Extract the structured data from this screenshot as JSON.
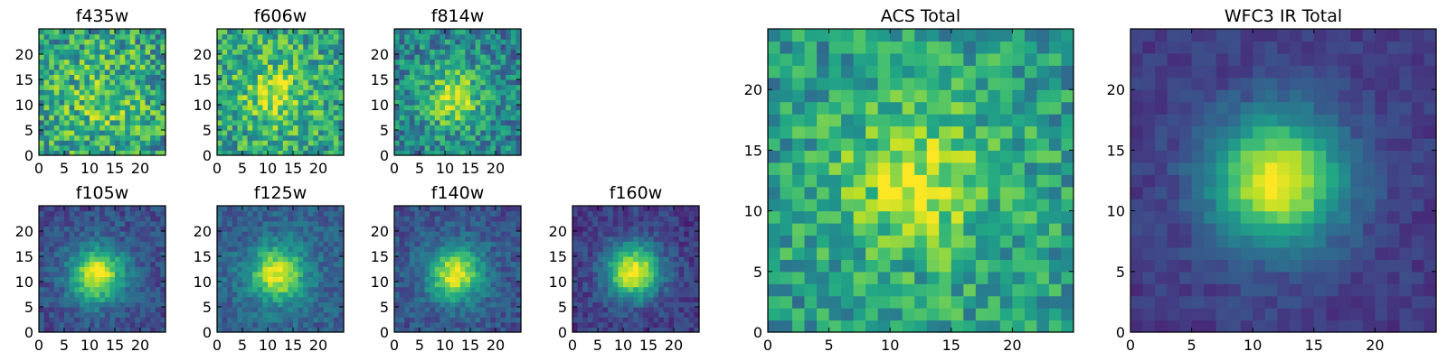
{
  "figure": {
    "panels": [
      {
        "id": "f435w",
        "title": "f435w"
      },
      {
        "id": "f606w",
        "title": "f606w"
      },
      {
        "id": "f814w",
        "title": "f814w"
      },
      {
        "id": "f105w",
        "title": "f105w"
      },
      {
        "id": "f125w",
        "title": "f125w"
      },
      {
        "id": "f140w",
        "title": "f140w"
      },
      {
        "id": "f160w",
        "title": "f160w"
      },
      {
        "id": "acs_total",
        "title": "ACS Total"
      },
      {
        "id": "wfc3_ir_total",
        "title": "WFC3 IR Total"
      }
    ]
  },
  "chart_data": [
    {
      "type": "heatmap",
      "title": "f435w",
      "colormap": "viridis",
      "grid_size": [
        25,
        25
      ],
      "xlim": [
        0,
        25
      ],
      "ylim": [
        0,
        25
      ],
      "xticks": [
        0,
        5,
        10,
        15,
        20
      ],
      "yticks": [
        0,
        5,
        10,
        15,
        20
      ],
      "xtick_labels": [
        "0",
        "5",
        "10",
        "15",
        "20"
      ],
      "ytick_labels": [
        "0",
        "5",
        "10",
        "15",
        "20"
      ],
      "source_center": [
        12,
        11
      ],
      "source_strength": 0.05,
      "noise_level": 0.55,
      "background_level": 0.72
    },
    {
      "type": "heatmap",
      "title": "f606w",
      "colormap": "viridis",
      "grid_size": [
        25,
        25
      ],
      "xlim": [
        0,
        25
      ],
      "ylim": [
        0,
        25
      ],
      "xticks": [
        0,
        5,
        10,
        15,
        20
      ],
      "yticks": [
        0,
        5,
        10,
        15,
        20
      ],
      "xtick_labels": [
        "0",
        "5",
        "10",
        "15",
        "20"
      ],
      "ytick_labels": [
        "0",
        "5",
        "10",
        "15",
        "20"
      ],
      "source_center": [
        11,
        12
      ],
      "source_strength": 0.15,
      "noise_level": 0.5,
      "background_level": 0.72
    },
    {
      "type": "heatmap",
      "title": "f814w",
      "colormap": "viridis",
      "grid_size": [
        25,
        25
      ],
      "xlim": [
        0,
        25
      ],
      "ylim": [
        0,
        25
      ],
      "xticks": [
        0,
        5,
        10,
        15,
        20
      ],
      "yticks": [
        0,
        5,
        10,
        15,
        20
      ],
      "xtick_labels": [
        "0",
        "5",
        "10",
        "15",
        "20"
      ],
      "ytick_labels": [
        "0",
        "5",
        "10",
        "15",
        "20"
      ],
      "source_center": [
        11,
        11
      ],
      "source_strength": 0.4,
      "noise_level": 0.45,
      "background_level": 0.55
    },
    {
      "type": "heatmap",
      "title": "f105w",
      "colormap": "viridis",
      "grid_size": [
        25,
        25
      ],
      "xlim": [
        0,
        25
      ],
      "ylim": [
        0,
        25
      ],
      "xticks": [
        0,
        5,
        10,
        15,
        20
      ],
      "yticks": [
        0,
        5,
        10,
        15,
        20
      ],
      "xtick_labels": [
        "0",
        "5",
        "10",
        "15",
        "20"
      ],
      "ytick_labels": [
        "0",
        "5",
        "10",
        "15",
        "20"
      ],
      "source_center": [
        11,
        11
      ],
      "source_strength": 0.7,
      "noise_level": 0.22,
      "background_level": 0.3
    },
    {
      "type": "heatmap",
      "title": "f125w",
      "colormap": "viridis",
      "grid_size": [
        25,
        25
      ],
      "xlim": [
        0,
        25
      ],
      "ylim": [
        0,
        25
      ],
      "xticks": [
        0,
        5,
        10,
        15,
        20
      ],
      "yticks": [
        0,
        5,
        10,
        15,
        20
      ],
      "xtick_labels": [
        "0",
        "5",
        "10",
        "15",
        "20"
      ],
      "ytick_labels": [
        "0",
        "5",
        "10",
        "15",
        "20"
      ],
      "source_center": [
        11.5,
        11
      ],
      "source_strength": 0.6,
      "noise_level": 0.22,
      "background_level": 0.38
    },
    {
      "type": "heatmap",
      "title": "f140w",
      "colormap": "viridis",
      "grid_size": [
        25,
        25
      ],
      "xlim": [
        0,
        25
      ],
      "ylim": [
        0,
        25
      ],
      "xticks": [
        0,
        5,
        10,
        15,
        20
      ],
      "yticks": [
        0,
        5,
        10,
        15,
        20
      ],
      "xtick_labels": [
        "0",
        "5",
        "10",
        "15",
        "20"
      ],
      "ytick_labels": [
        "0",
        "5",
        "10",
        "15",
        "20"
      ],
      "source_center": [
        11.5,
        11
      ],
      "source_strength": 0.65,
      "noise_level": 0.22,
      "background_level": 0.32
    },
    {
      "type": "heatmap",
      "title": "f160w",
      "colormap": "viridis",
      "grid_size": [
        25,
        25
      ],
      "xlim": [
        0,
        25
      ],
      "ylim": [
        0,
        25
      ],
      "xticks": [
        0,
        5,
        10,
        15,
        20
      ],
      "yticks": [
        0,
        5,
        10,
        15,
        20
      ],
      "xtick_labels": [
        "0",
        "5",
        "10",
        "15",
        "20"
      ],
      "ytick_labels": [
        "0",
        "5",
        "10",
        "15",
        "20"
      ],
      "source_center": [
        11.5,
        11.5
      ],
      "source_strength": 0.8,
      "noise_level": 0.2,
      "background_level": 0.22
    },
    {
      "type": "heatmap",
      "title": "ACS Total",
      "colormap": "viridis",
      "grid_size": [
        25,
        25
      ],
      "xlim": [
        0,
        25
      ],
      "ylim": [
        0,
        25
      ],
      "xticks": [
        0,
        5,
        10,
        15,
        20
      ],
      "yticks": [
        0,
        5,
        10,
        15,
        20
      ],
      "xtick_labels": [
        "0",
        "5",
        "10",
        "15",
        "20"
      ],
      "ytick_labels": [
        "0",
        "5",
        "10",
        "15",
        "20"
      ],
      "source_center": [
        11.5,
        12
      ],
      "source_strength": 0.25,
      "noise_level": 0.4,
      "background_level": 0.68
    },
    {
      "type": "heatmap",
      "title": "WFC3 IR Total",
      "colormap": "viridis",
      "grid_size": [
        25,
        25
      ],
      "xlim": [
        0,
        25
      ],
      "ylim": [
        0,
        25
      ],
      "xticks": [
        0,
        5,
        10,
        15,
        20
      ],
      "yticks": [
        0,
        5,
        10,
        15,
        20
      ],
      "xtick_labels": [
        "0",
        "5",
        "10",
        "15",
        "20"
      ],
      "ytick_labels": [
        "0",
        "5",
        "10",
        "15",
        "20"
      ],
      "source_center": [
        11.5,
        12
      ],
      "source_strength": 0.8,
      "noise_level": 0.12,
      "background_level": 0.22
    }
  ]
}
